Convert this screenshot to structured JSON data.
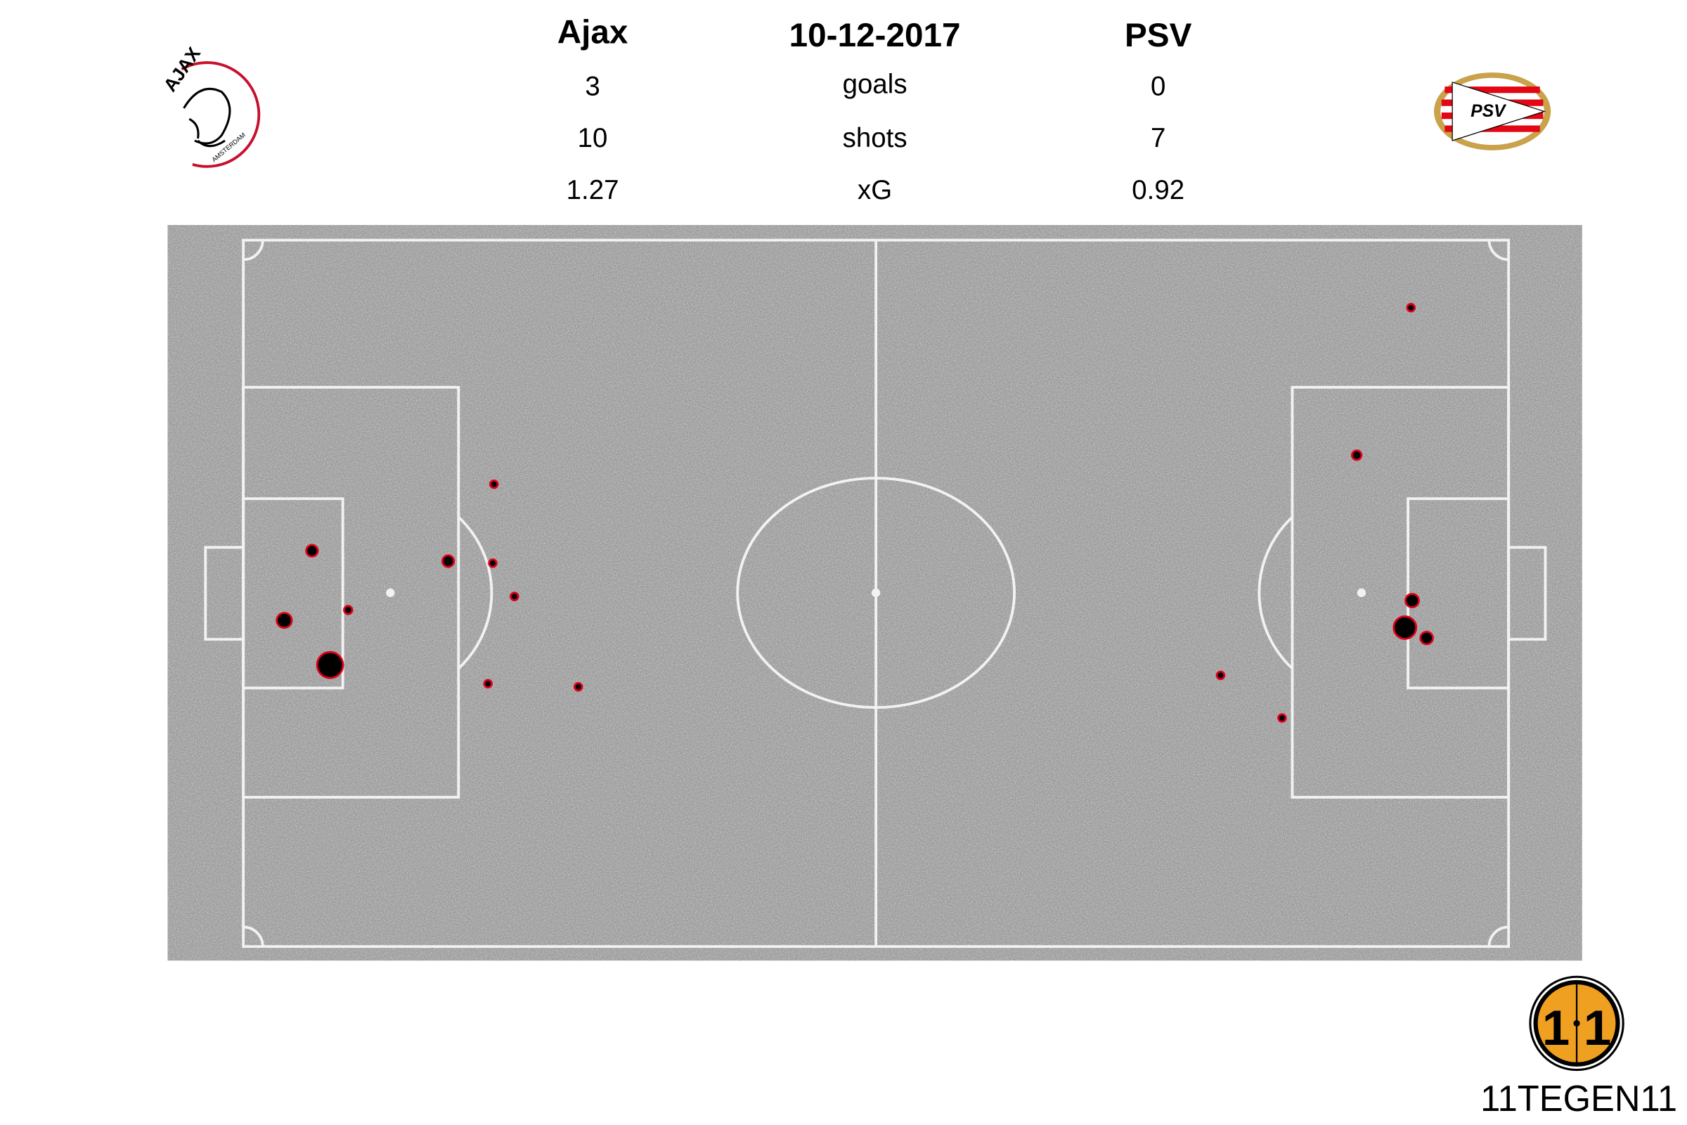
{
  "header": {
    "home_team": "Ajax",
    "date": "10-12-2017",
    "away_team": "PSV",
    "rows": [
      {
        "label": "goals",
        "home": "3",
        "away": "0"
      },
      {
        "label": "shots",
        "home": "10",
        "away": "7"
      },
      {
        "label": "xG",
        "home": "1.27",
        "away": "0.92"
      }
    ]
  },
  "logos": {
    "home": "AJAX AMSTERDAM",
    "away": "PSV",
    "brand": "11TEGEN11"
  },
  "colors": {
    "pitch": "#9c9c9c",
    "lines": "#f2f2f2",
    "shot_fill": "#000000",
    "shot_stroke": "#e0001a",
    "brand": "#f0a020"
  },
  "chart_data": {
    "type": "scatter",
    "xlim": [
      0,
      105
    ],
    "ylim": [
      0,
      68
    ],
    "series": [
      {
        "name": "Ajax",
        "points": [
          {
            "x": 20.8,
            "y": 23.5,
            "xg": 0.03
          },
          {
            "x": 5.7,
            "y": 29.9,
            "xg": 0.12
          },
          {
            "x": 17.0,
            "y": 30.9,
            "xg": 0.12
          },
          {
            "x": 20.7,
            "y": 31.1,
            "xg": 0.04
          },
          {
            "x": 22.5,
            "y": 34.3,
            "xg": 0.03
          },
          {
            "x": 8.7,
            "y": 35.6,
            "xg": 0.06
          },
          {
            "x": 3.4,
            "y": 36.6,
            "xg": 0.2
          },
          {
            "x": 7.2,
            "y": 40.9,
            "xg": 0.6
          },
          {
            "x": 20.3,
            "y": 42.7,
            "xg": 0.04
          },
          {
            "x": 27.8,
            "y": 43.0,
            "xg": 0.03
          }
        ]
      },
      {
        "name": "PSV",
        "points": [
          {
            "x": 96.9,
            "y": 6.5,
            "xg": 0.03
          },
          {
            "x": 92.4,
            "y": 20.7,
            "xg": 0.08
          },
          {
            "x": 97.0,
            "y": 34.7,
            "xg": 0.16
          },
          {
            "x": 96.4,
            "y": 37.3,
            "xg": 0.45
          },
          {
            "x": 98.2,
            "y": 38.3,
            "xg": 0.14
          },
          {
            "x": 81.1,
            "y": 41.9,
            "xg": 0.03
          },
          {
            "x": 86.2,
            "y": 46.0,
            "xg": 0.03
          }
        ]
      }
    ]
  }
}
